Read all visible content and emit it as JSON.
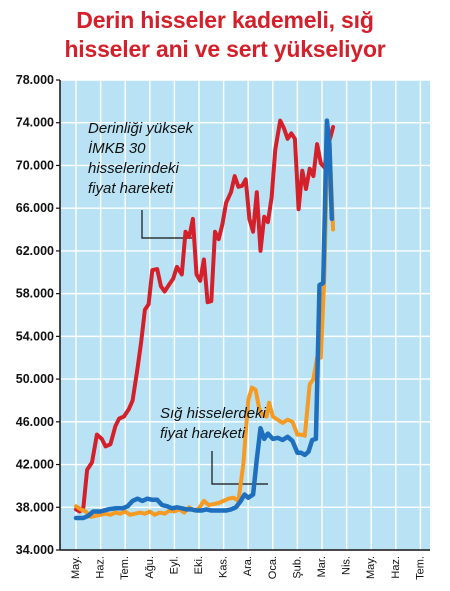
{
  "title": {
    "line1": "Derin hisseler kademeli, sığ",
    "line2": "hisseler ani ve sert yükseliyor"
  },
  "chart_data": {
    "type": "line",
    "title": "Derin hisseler kademeli, sığ hisseler ani ve sert yükseliyor",
    "categories": [
      "May.",
      "Haz.",
      "Tem.",
      "Ağu.",
      "Eyl.",
      "Eki.",
      "Kas.",
      "Ara.",
      "Oca.",
      "Şub.",
      "Mar.",
      "Nis.",
      "May.",
      "Haz.",
      "Tem."
    ],
    "ylim": [
      34000,
      78000
    ],
    "yticks": [
      "78.000",
      "74.000",
      "70.000",
      "66.000",
      "62.000",
      "58.000",
      "54.000",
      "50.000",
      "46.000",
      "42.000",
      "38.000",
      "34.000"
    ],
    "grid": true,
    "annotations": {
      "deep": [
        "Derinliği yüksek",
        "İMKB 30",
        "hisselerindeki",
        "fiyat hareketi"
      ],
      "shallow": [
        "Sığ hisselerdeki",
        "fiyat hareketi"
      ]
    },
    "series": [
      {
        "color": "#d4202a",
        "points": [
          [
            0.0,
            37800
          ],
          [
            0.15,
            37600
          ],
          [
            0.3,
            38000
          ],
          [
            0.45,
            41500
          ],
          [
            0.65,
            42200
          ],
          [
            0.85,
            44800
          ],
          [
            1.05,
            44400
          ],
          [
            1.2,
            43700
          ],
          [
            1.4,
            43900
          ],
          [
            1.6,
            45600
          ],
          [
            1.75,
            46300
          ],
          [
            1.95,
            46500
          ],
          [
            2.15,
            47200
          ],
          [
            2.3,
            48000
          ],
          [
            2.5,
            51000
          ],
          [
            2.65,
            53500
          ],
          [
            2.8,
            56500
          ],
          [
            2.95,
            57000
          ],
          [
            3.1,
            60200
          ],
          [
            3.3,
            60300
          ],
          [
            3.45,
            58700
          ],
          [
            3.6,
            58200
          ],
          [
            3.8,
            58900
          ],
          [
            3.95,
            59400
          ],
          [
            4.1,
            60500
          ],
          [
            4.3,
            59800
          ],
          [
            4.45,
            63800
          ],
          [
            4.6,
            63300
          ],
          [
            4.75,
            65000
          ],
          [
            4.9,
            59800
          ],
          [
            5.05,
            59200
          ],
          [
            5.2,
            61200
          ],
          [
            5.35,
            57200
          ],
          [
            5.5,
            57300
          ],
          [
            5.65,
            63800
          ],
          [
            5.8,
            63100
          ],
          [
            5.95,
            64500
          ],
          [
            6.1,
            66500
          ],
          [
            6.3,
            67500
          ],
          [
            6.45,
            69000
          ],
          [
            6.6,
            68000
          ],
          [
            6.75,
            68100
          ],
          [
            6.9,
            68700
          ],
          [
            7.05,
            65000
          ],
          [
            7.2,
            63800
          ],
          [
            7.35,
            67500
          ],
          [
            7.5,
            62000
          ],
          [
            7.65,
            65200
          ],
          [
            7.8,
            64700
          ],
          [
            7.95,
            67000
          ],
          [
            8.1,
            71500
          ],
          [
            8.3,
            74200
          ],
          [
            8.45,
            73500
          ],
          [
            8.6,
            72500
          ],
          [
            8.75,
            73000
          ],
          [
            8.9,
            72500
          ],
          [
            9.05,
            65900
          ],
          [
            9.2,
            69500
          ],
          [
            9.35,
            67800
          ],
          [
            9.5,
            69700
          ],
          [
            9.65,
            69000
          ],
          [
            9.8,
            72000
          ],
          [
            9.95,
            70200
          ],
          [
            10.1,
            69800
          ],
          [
            10.25,
            71800
          ],
          [
            10.45,
            73600
          ]
        ]
      },
      {
        "color": "#f59a23",
        "points": [
          [
            0.0,
            38100
          ],
          [
            0.2,
            37800
          ],
          [
            0.4,
            37600
          ],
          [
            0.6,
            37100
          ],
          [
            0.8,
            37200
          ],
          [
            1.0,
            37300
          ],
          [
            1.2,
            37400
          ],
          [
            1.4,
            37300
          ],
          [
            1.6,
            37500
          ],
          [
            1.8,
            37400
          ],
          [
            2.0,
            37600
          ],
          [
            2.2,
            37300
          ],
          [
            2.4,
            37400
          ],
          [
            2.6,
            37500
          ],
          [
            2.8,
            37400
          ],
          [
            3.0,
            37600
          ],
          [
            3.2,
            37300
          ],
          [
            3.4,
            37500
          ],
          [
            3.6,
            37400
          ],
          [
            3.8,
            37700
          ],
          [
            4.0,
            37600
          ],
          [
            4.2,
            37800
          ],
          [
            4.4,
            37500
          ],
          [
            4.6,
            38000
          ],
          [
            4.8,
            37700
          ],
          [
            5.0,
            37900
          ],
          [
            5.2,
            38600
          ],
          [
            5.4,
            38200
          ],
          [
            5.6,
            38300
          ],
          [
            5.8,
            38400
          ],
          [
            6.0,
            38600
          ],
          [
            6.2,
            38800
          ],
          [
            6.4,
            38900
          ],
          [
            6.6,
            38600
          ],
          [
            6.8,
            42000
          ],
          [
            7.0,
            48000
          ],
          [
            7.15,
            49200
          ],
          [
            7.3,
            49000
          ],
          [
            7.45,
            47200
          ],
          [
            7.6,
            46600
          ],
          [
            7.75,
            46500
          ],
          [
            7.85,
            47800
          ],
          [
            8.0,
            46500
          ],
          [
            8.2,
            46200
          ],
          [
            8.4,
            45900
          ],
          [
            8.6,
            46200
          ],
          [
            8.8,
            46000
          ],
          [
            9.0,
            44800
          ],
          [
            9.15,
            44800
          ],
          [
            9.3,
            44700
          ],
          [
            9.5,
            49500
          ],
          [
            9.65,
            50000
          ],
          [
            9.8,
            52000
          ],
          [
            9.95,
            52000
          ],
          [
            10.1,
            60000
          ],
          [
            10.2,
            70000
          ],
          [
            10.3,
            72500
          ],
          [
            10.45,
            64000
          ]
        ]
      },
      {
        "color": "#1f6fbf",
        "points": [
          [
            0.0,
            37000
          ],
          [
            0.3,
            37000
          ],
          [
            0.5,
            37200
          ],
          [
            0.7,
            37600
          ],
          [
            1.0,
            37600
          ],
          [
            1.3,
            37800
          ],
          [
            1.6,
            37900
          ],
          [
            1.9,
            37900
          ],
          [
            2.1,
            38100
          ],
          [
            2.3,
            38600
          ],
          [
            2.5,
            38800
          ],
          [
            2.7,
            38600
          ],
          [
            2.9,
            38800
          ],
          [
            3.1,
            38700
          ],
          [
            3.3,
            38700
          ],
          [
            3.5,
            38200
          ],
          [
            3.7,
            38100
          ],
          [
            3.9,
            37900
          ],
          [
            4.1,
            38000
          ],
          [
            4.3,
            37900
          ],
          [
            4.5,
            37800
          ],
          [
            4.7,
            37800
          ],
          [
            4.9,
            37700
          ],
          [
            5.1,
            37700
          ],
          [
            5.3,
            37800
          ],
          [
            5.5,
            37700
          ],
          [
            5.7,
            37700
          ],
          [
            5.9,
            37700
          ],
          [
            6.1,
            37700
          ],
          [
            6.3,
            37800
          ],
          [
            6.5,
            38000
          ],
          [
            6.7,
            38600
          ],
          [
            6.85,
            39200
          ],
          [
            7.0,
            38900
          ],
          [
            7.2,
            39200
          ],
          [
            7.35,
            42500
          ],
          [
            7.5,
            45400
          ],
          [
            7.65,
            44400
          ],
          [
            7.8,
            44900
          ],
          [
            8.0,
            44400
          ],
          [
            8.2,
            44500
          ],
          [
            8.4,
            44300
          ],
          [
            8.6,
            44600
          ],
          [
            8.8,
            44200
          ],
          [
            9.0,
            43100
          ],
          [
            9.15,
            43100
          ],
          [
            9.3,
            42900
          ],
          [
            9.45,
            43200
          ],
          [
            9.6,
            44300
          ],
          [
            9.75,
            44400
          ],
          [
            9.9,
            58800
          ],
          [
            10.05,
            59000
          ],
          [
            10.2,
            74200
          ],
          [
            10.3,
            72000
          ],
          [
            10.4,
            65000
          ]
        ]
      }
    ]
  }
}
